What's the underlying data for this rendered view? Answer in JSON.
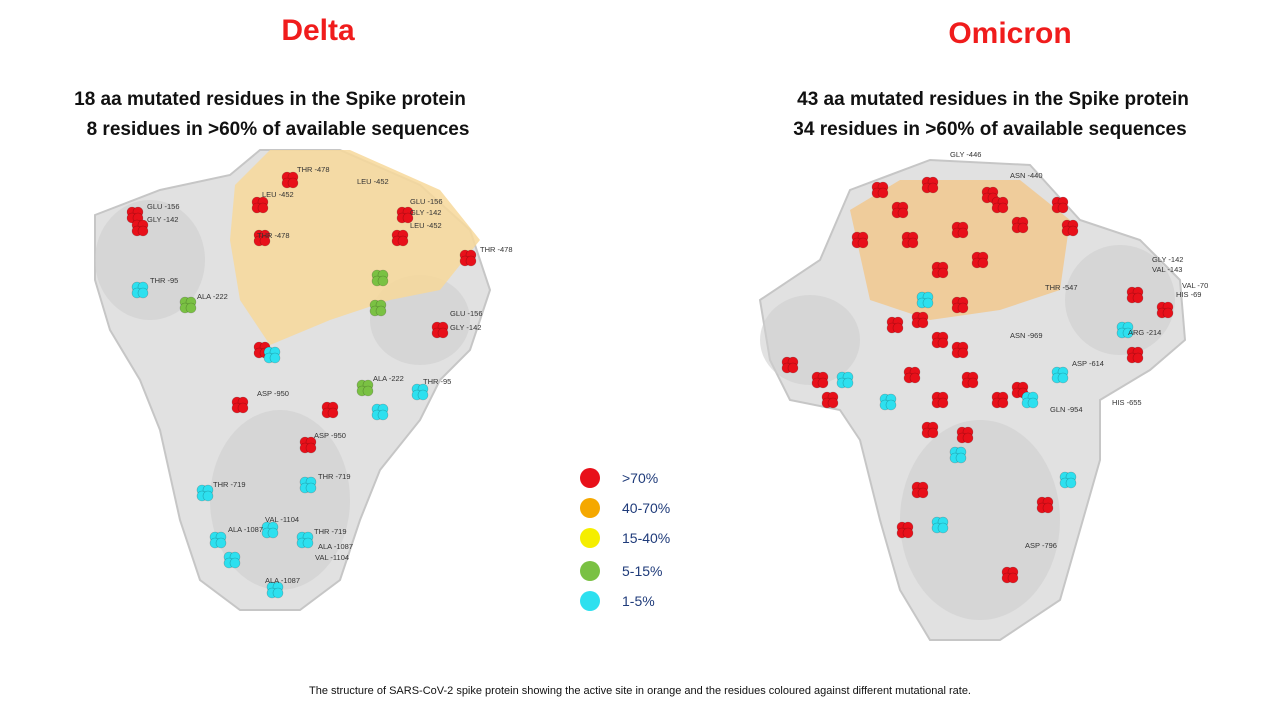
{
  "panels": [
    {
      "title": "Delta",
      "lines": [
        "18 aa mutated residues in the Spike protein",
        "8 residues in >60% of available sequences"
      ],
      "residue_labels": [
        "GLU -156",
        "GLY -142",
        "THR -478",
        "LEU -452",
        "LEU -452",
        "GLU -156",
        "GLY -142",
        "LEU -452",
        "THR -478",
        "THR -478",
        "THR -95",
        "ALA -222",
        "GLU -156",
        "GLY -142",
        "ASP -950",
        "ALA -222",
        "THR -95",
        "ASP -950",
        "THR -719",
        "THR -719",
        "VAL -1104",
        "ALA -1087",
        "THR -719",
        "ALA -1087",
        "VAL -1104",
        "ALA -1087"
      ]
    },
    {
      "title": "Omicron",
      "lines": [
        "43 aa mutated residues in the Spike protein",
        "34 residues in >60% of available sequences"
      ],
      "residue_labels": [
        "GLY -446",
        "ASN -440",
        "GLY -142",
        "VAL -143",
        "VAL -70",
        "HIS -69",
        "THR -547",
        "ARG -214",
        "ASN -969",
        "ASP -614",
        "GLN -954",
        "HIS -655",
        "ASP -796"
      ]
    }
  ],
  "legend": [
    {
      "label": ">70%",
      "color": "#e8101a"
    },
    {
      "label": "40-70%",
      "color": "#f5a800"
    },
    {
      "label": "15-40%",
      "color": "#f5ee00"
    },
    {
      "label": "5-15%",
      "color": "#7ac143"
    },
    {
      "label": "1-5%",
      "color": "#2de0ef"
    }
  ],
  "caption": "The structure of SARS-CoV-2 spike protein showing the active site in orange and the residues coloured against different mutational rate."
}
